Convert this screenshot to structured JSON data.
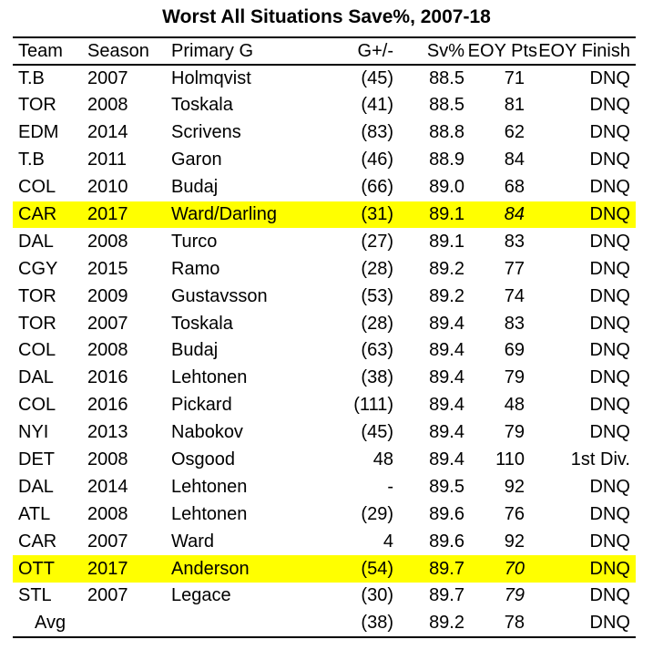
{
  "title": "Worst All Situations Save%, 2007-18",
  "headers": {
    "team": "Team",
    "season": "Season",
    "goalie": "Primary G",
    "gpm": "G+/-",
    "sv": "Sv%",
    "pts": "EOY  Pts",
    "finish": "EOY  Finish"
  },
  "rows": [
    {
      "team": "T.B",
      "season": "2007",
      "goalie": "Holmqvist",
      "gpm": "(45)",
      "sv": "88.5",
      "pts": "71",
      "finish": "DNQ"
    },
    {
      "team": "TOR",
      "season": "2008",
      "goalie": "Toskala",
      "gpm": "(41)",
      "sv": "88.5",
      "pts": "81",
      "finish": "DNQ"
    },
    {
      "team": "EDM",
      "season": "2014",
      "goalie": "Scrivens",
      "gpm": "(83)",
      "sv": "88.8",
      "pts": "62",
      "finish": "DNQ"
    },
    {
      "team": "T.B",
      "season": "2011",
      "goalie": "Garon",
      "gpm": "(46)",
      "sv": "88.9",
      "pts": "84",
      "finish": "DNQ"
    },
    {
      "team": "COL",
      "season": "2010",
      "goalie": "Budaj",
      "gpm": "(66)",
      "sv": "89.0",
      "pts": "68",
      "finish": "DNQ"
    },
    {
      "team": "CAR",
      "season": "2017",
      "goalie": "Ward/Darling",
      "gpm": "(31)",
      "sv": "89.1",
      "pts": "84",
      "finish": "DNQ",
      "highlight": true,
      "pts_italic": true
    },
    {
      "team": "DAL",
      "season": "2008",
      "goalie": "Turco",
      "gpm": "(27)",
      "sv": "89.1",
      "pts": "83",
      "finish": "DNQ"
    },
    {
      "team": "CGY",
      "season": "2015",
      "goalie": "Ramo",
      "gpm": "(28)",
      "sv": "89.2",
      "pts": "77",
      "finish": "DNQ"
    },
    {
      "team": "TOR",
      "season": "2009",
      "goalie": "Gustavsson",
      "gpm": "(53)",
      "sv": "89.2",
      "pts": "74",
      "finish": "DNQ"
    },
    {
      "team": "TOR",
      "season": "2007",
      "goalie": "Toskala",
      "gpm": "(28)",
      "sv": "89.4",
      "pts": "83",
      "finish": "DNQ"
    },
    {
      "team": "COL",
      "season": "2008",
      "goalie": "Budaj",
      "gpm": "(63)",
      "sv": "89.4",
      "pts": "69",
      "finish": "DNQ"
    },
    {
      "team": "DAL",
      "season": "2016",
      "goalie": "Lehtonen",
      "gpm": "(38)",
      "sv": "89.4",
      "pts": "79",
      "finish": "DNQ"
    },
    {
      "team": "COL",
      "season": "2016",
      "goalie": "Pickard",
      "gpm": "(111)",
      "sv": "89.4",
      "pts": "48",
      "finish": "DNQ"
    },
    {
      "team": "NYI",
      "season": "2013",
      "goalie": "Nabokov",
      "gpm": "(45)",
      "sv": "89.4",
      "pts": "79",
      "finish": "DNQ"
    },
    {
      "team": "DET",
      "season": "2008",
      "goalie": "Osgood",
      "gpm": "48",
      "sv": "89.4",
      "pts": "110",
      "finish": "1st Div."
    },
    {
      "team": "DAL",
      "season": "2014",
      "goalie": "Lehtonen",
      "gpm": "-",
      "sv": "89.5",
      "pts": "92",
      "finish": "DNQ"
    },
    {
      "team": "ATL",
      "season": "2008",
      "goalie": "Lehtonen",
      "gpm": "(29)",
      "sv": "89.6",
      "pts": "76",
      "finish": "DNQ"
    },
    {
      "team": "CAR",
      "season": "2007",
      "goalie": "Ward",
      "gpm": "4",
      "sv": "89.6",
      "pts": "92",
      "finish": "DNQ"
    },
    {
      "team": "OTT",
      "season": "2017",
      "goalie": "Anderson",
      "gpm": "(54)",
      "sv": "89.7",
      "pts": "70",
      "finish": "DNQ",
      "highlight": true,
      "pts_italic": true
    },
    {
      "team": "STL",
      "season": "2007",
      "goalie": "Legace",
      "gpm": "(30)",
      "sv": "89.7",
      "pts": "79",
      "finish": "DNQ",
      "pts_italic": true
    }
  ],
  "average": {
    "label": "Avg",
    "gpm": "(38)",
    "sv": "89.2",
    "pts": "78",
    "finish": "DNQ"
  },
  "colors": {
    "highlight": "#ffff00"
  }
}
